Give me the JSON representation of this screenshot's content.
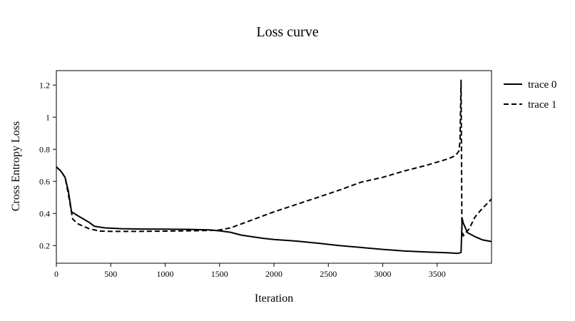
{
  "chart_data": {
    "type": "line",
    "title": "Loss curve",
    "xlabel": "Iteration",
    "ylabel": "Cross Entropy Loss",
    "xlim": [
      0,
      4000
    ],
    "ylim": [
      0.09,
      1.29
    ],
    "x_ticks": [
      0,
      500,
      1000,
      1500,
      2000,
      2500,
      3000,
      3500
    ],
    "y_ticks": [
      0.2,
      0.4,
      0.6,
      0.8,
      1.0,
      1.2
    ],
    "x_tick_labels": [
      "0",
      "500",
      "1000",
      "1500",
      "2000",
      "2500",
      "3000",
      "3500"
    ],
    "y_tick_labels": [
      "0.2",
      "0.4",
      "0.6",
      "0.8",
      "1",
      "1.2"
    ],
    "grid": false,
    "legend_position": "outside-right",
    "series": [
      {
        "name": "trace 0",
        "line_style": "solid",
        "color": "#000000",
        "x": [
          0,
          40,
          80,
          110,
          140,
          200,
          300,
          350,
          450,
          600,
          800,
          1000,
          1200,
          1400,
          1500,
          1600,
          1700,
          1800,
          1900,
          2000,
          2200,
          2400,
          2600,
          2800,
          3000,
          3200,
          3400,
          3600,
          3680,
          3690,
          3700,
          3710,
          3720,
          3730,
          3740,
          3780,
          3850,
          3920,
          4000
        ],
        "y": [
          0.69,
          0.665,
          0.625,
          0.54,
          0.41,
          0.385,
          0.345,
          0.32,
          0.31,
          0.305,
          0.303,
          0.302,
          0.301,
          0.298,
          0.292,
          0.283,
          0.265,
          0.255,
          0.245,
          0.238,
          0.228,
          0.215,
          0.2,
          0.188,
          0.176,
          0.166,
          0.16,
          0.155,
          0.152,
          0.152,
          0.153,
          0.155,
          0.158,
          0.37,
          0.34,
          0.28,
          0.255,
          0.235,
          0.225
        ]
      },
      {
        "name": "trace 1",
        "line_style": "dashed",
        "color": "#000000",
        "x": [
          0,
          40,
          80,
          110,
          150,
          200,
          300,
          400,
          500,
          700,
          1000,
          1200,
          1400,
          1500,
          1600,
          1700,
          1800,
          1900,
          2000,
          2200,
          2400,
          2600,
          2800,
          3000,
          3200,
          3400,
          3600,
          3650,
          3680,
          3700,
          3710,
          3720,
          3728,
          3740,
          3760,
          3790,
          3850,
          3900,
          4000
        ],
        "y": [
          0.69,
          0.665,
          0.625,
          0.52,
          0.365,
          0.335,
          0.305,
          0.29,
          0.288,
          0.288,
          0.29,
          0.292,
          0.294,
          0.297,
          0.31,
          0.335,
          0.36,
          0.385,
          0.41,
          0.455,
          0.5,
          0.545,
          0.595,
          0.625,
          0.665,
          0.7,
          0.74,
          0.755,
          0.77,
          0.79,
          0.85,
          1.23,
          0.3,
          0.26,
          0.28,
          0.3,
          0.38,
          0.42,
          0.49
        ]
      }
    ]
  }
}
